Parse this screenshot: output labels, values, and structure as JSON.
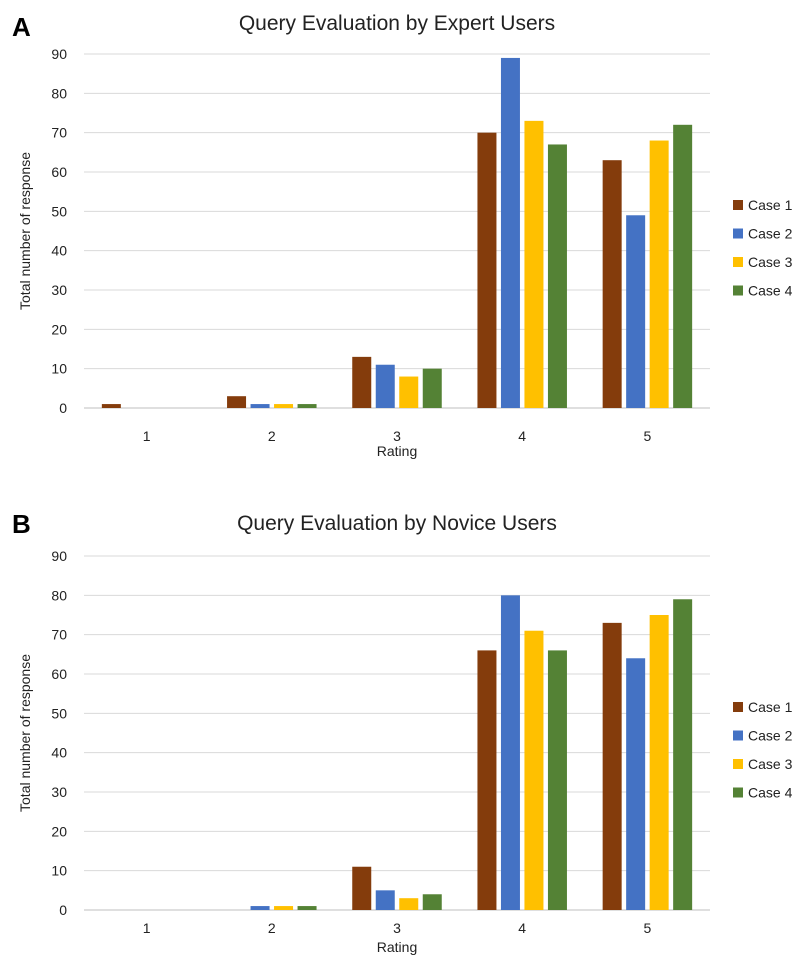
{
  "chart_data": [
    {
      "panel_label": "A",
      "type": "bar",
      "title": "Query Evaluation by Expert Users",
      "xlabel": "Rating",
      "ylabel": "Total number of response",
      "categories": [
        "1",
        "2",
        "3",
        "4",
        "5"
      ],
      "ylim": [
        0,
        90
      ],
      "yticks": [
        0,
        10,
        20,
        30,
        40,
        50,
        60,
        70,
        80,
        90
      ],
      "grid": true,
      "legend_position": "right",
      "series": [
        {
          "name": "Case 1",
          "color": "#843C0C",
          "values": [
            1,
            3,
            13,
            70,
            63
          ]
        },
        {
          "name": "Case 2",
          "color": "#4472C4",
          "values": [
            0,
            1,
            11,
            89,
            49
          ]
        },
        {
          "name": "Case 3",
          "color": "#FFC000",
          "values": [
            0,
            1,
            8,
            73,
            68
          ]
        },
        {
          "name": "Case 4",
          "color": "#548235",
          "values": [
            0,
            1,
            10,
            67,
            72
          ]
        }
      ]
    },
    {
      "panel_label": "B",
      "type": "bar",
      "title": "Query Evaluation by Novice Users",
      "xlabel": "Rating",
      "ylabel": "Total number of response",
      "categories": [
        "1",
        "2",
        "3",
        "4",
        "5"
      ],
      "ylim": [
        0,
        90
      ],
      "yticks": [
        0,
        10,
        20,
        30,
        40,
        50,
        60,
        70,
        80,
        90
      ],
      "grid": true,
      "legend_position": "right",
      "series": [
        {
          "name": "Case 1",
          "color": "#843C0C",
          "values": [
            0,
            0,
            11,
            66,
            73
          ]
        },
        {
          "name": "Case 2",
          "color": "#4472C4",
          "values": [
            0,
            1,
            5,
            80,
            64
          ]
        },
        {
          "name": "Case 3",
          "color": "#FFC000",
          "values": [
            0,
            1,
            3,
            71,
            75
          ]
        },
        {
          "name": "Case 4",
          "color": "#548235",
          "values": [
            0,
            1,
            4,
            66,
            79
          ]
        }
      ]
    }
  ]
}
